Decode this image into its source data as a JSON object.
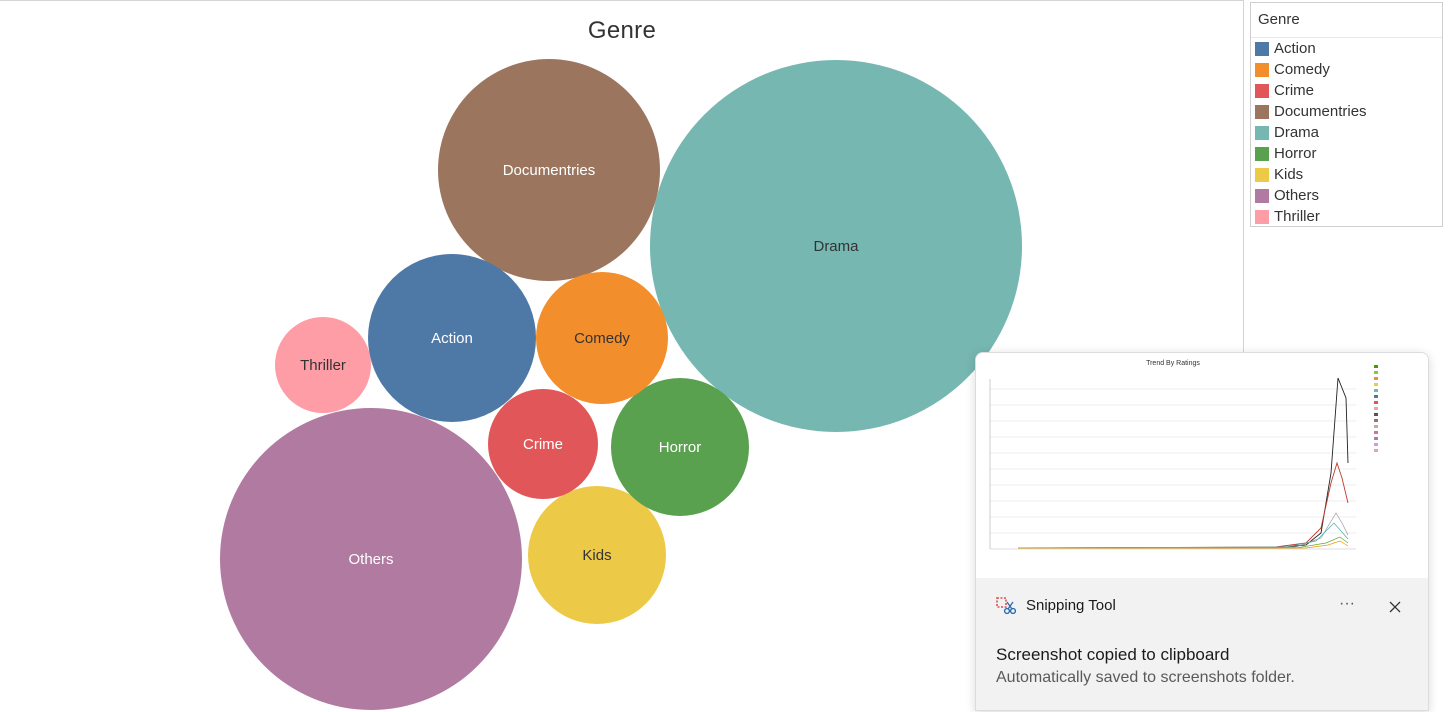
{
  "viz": {
    "title": "Genre"
  },
  "chart_data": {
    "type": "bubble",
    "title": "Genre",
    "bubbles": [
      {
        "name": "Drama",
        "size": 10.0
      },
      {
        "name": "Others",
        "size": 6.6
      },
      {
        "name": "Documentries",
        "size": 3.6
      },
      {
        "name": "Action",
        "size": 2.0
      },
      {
        "name": "Kids",
        "size": 1.36
      },
      {
        "name": "Horror",
        "size": 1.36
      },
      {
        "name": "Comedy",
        "size": 1.26
      },
      {
        "name": "Crime",
        "size": 0.89
      },
      {
        "name": "Thriller",
        "size": 0.66
      }
    ]
  },
  "legend": {
    "title": "Genre",
    "items": [
      {
        "label": "Action",
        "color": "#4e79a7"
      },
      {
        "label": "Comedy",
        "color": "#f28e2b"
      },
      {
        "label": "Crime",
        "color": "#e15759"
      },
      {
        "label": "Documentries",
        "color": "#9c755f"
      },
      {
        "label": "Drama",
        "color": "#76b7b2"
      },
      {
        "label": "Horror",
        "color": "#59a14f"
      },
      {
        "label": "Kids",
        "color": "#edc948"
      },
      {
        "label": "Others",
        "color": "#b07aa1"
      },
      {
        "label": "Thriller",
        "color": "#ff9da7"
      }
    ]
  },
  "toast": {
    "app_name": "Snipping Tool",
    "more_label": "···",
    "message": "Screenshot copied to clipboard",
    "submessage": "Automatically saved to screenshots folder.",
    "thumbnail_title": "Trend By Ratings"
  }
}
